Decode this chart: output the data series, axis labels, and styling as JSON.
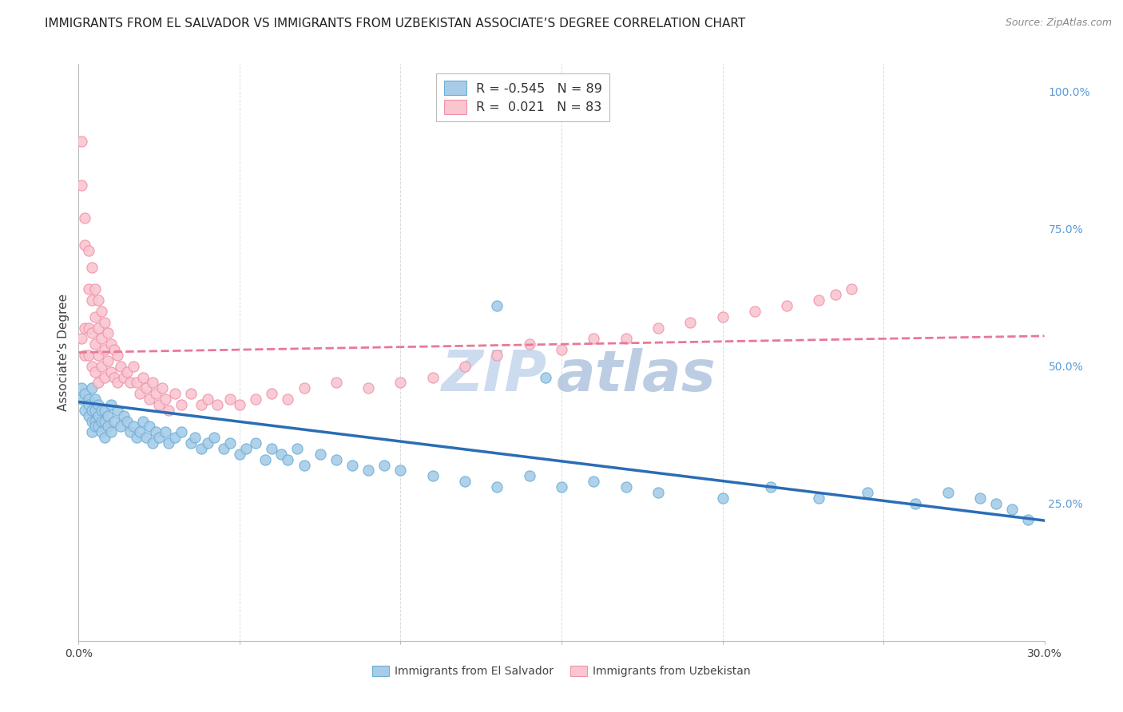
{
  "title": "IMMIGRANTS FROM EL SALVADOR VS IMMIGRANTS FROM UZBEKISTAN ASSOCIATE’S DEGREE CORRELATION CHART",
  "source": "Source: ZipAtlas.com",
  "ylabel": "Associate’s Degree",
  "xlim": [
    0.0,
    0.3
  ],
  "ylim": [
    0.0,
    1.05
  ],
  "xtick_vals": [
    0.0,
    0.05,
    0.1,
    0.15,
    0.2,
    0.25,
    0.3
  ],
  "xticklabels": [
    "0.0%",
    "",
    "",
    "",
    "",
    "",
    "30.0%"
  ],
  "yticks_right": [
    0.25,
    0.5,
    0.75,
    1.0
  ],
  "ytick_right_labels": [
    "25.0%",
    "50.0%",
    "75.0%",
    "100.0%"
  ],
  "blue_fill": "#a8cce8",
  "blue_edge": "#6aaed6",
  "pink_fill": "#f9c6d0",
  "pink_edge": "#f090a8",
  "trend_blue": "#2a6db5",
  "trend_pink": "#e87898",
  "R_blue": -0.545,
  "N_blue": 89,
  "R_pink": 0.021,
  "N_pink": 83,
  "legend_label_blue": "Immigrants from El Salvador",
  "legend_label_pink": "Immigrants from Uzbekistan",
  "blue_slope": -0.72,
  "blue_intercept": 0.435,
  "pink_slope": 0.1,
  "pink_intercept": 0.525,
  "background_color": "#ffffff",
  "grid_color": "#cccccc",
  "title_fontsize": 11,
  "axis_label_fontsize": 11,
  "tick_fontsize": 10,
  "source_fontsize": 9,
  "watermark_zip_color": "#c8d8ee",
  "watermark_atlas_color": "#a0b8d8",
  "watermark_fontsize": 52,
  "blue_x": [
    0.001,
    0.001,
    0.002,
    0.002,
    0.003,
    0.003,
    0.003,
    0.004,
    0.004,
    0.004,
    0.004,
    0.005,
    0.005,
    0.005,
    0.005,
    0.006,
    0.006,
    0.006,
    0.007,
    0.007,
    0.007,
    0.008,
    0.008,
    0.008,
    0.009,
    0.009,
    0.01,
    0.01,
    0.011,
    0.012,
    0.013,
    0.014,
    0.015,
    0.016,
    0.017,
    0.018,
    0.019,
    0.02,
    0.021,
    0.022,
    0.023,
    0.024,
    0.025,
    0.027,
    0.028,
    0.03,
    0.032,
    0.035,
    0.036,
    0.038,
    0.04,
    0.042,
    0.045,
    0.047,
    0.05,
    0.052,
    0.055,
    0.058,
    0.06,
    0.063,
    0.065,
    0.068,
    0.07,
    0.075,
    0.08,
    0.085,
    0.09,
    0.095,
    0.1,
    0.11,
    0.12,
    0.13,
    0.14,
    0.15,
    0.16,
    0.17,
    0.18,
    0.2,
    0.215,
    0.23,
    0.245,
    0.26,
    0.27,
    0.28,
    0.285,
    0.29,
    0.295,
    0.13,
    0.145
  ],
  "blue_y": [
    0.46,
    0.44,
    0.45,
    0.42,
    0.44,
    0.41,
    0.43,
    0.46,
    0.42,
    0.4,
    0.38,
    0.44,
    0.42,
    0.4,
    0.39,
    0.43,
    0.41,
    0.39,
    0.42,
    0.4,
    0.38,
    0.42,
    0.4,
    0.37,
    0.41,
    0.39,
    0.43,
    0.38,
    0.4,
    0.42,
    0.39,
    0.41,
    0.4,
    0.38,
    0.39,
    0.37,
    0.38,
    0.4,
    0.37,
    0.39,
    0.36,
    0.38,
    0.37,
    0.38,
    0.36,
    0.37,
    0.38,
    0.36,
    0.37,
    0.35,
    0.36,
    0.37,
    0.35,
    0.36,
    0.34,
    0.35,
    0.36,
    0.33,
    0.35,
    0.34,
    0.33,
    0.35,
    0.32,
    0.34,
    0.33,
    0.32,
    0.31,
    0.32,
    0.31,
    0.3,
    0.29,
    0.28,
    0.3,
    0.28,
    0.29,
    0.28,
    0.27,
    0.26,
    0.28,
    0.26,
    0.27,
    0.25,
    0.27,
    0.26,
    0.25,
    0.24,
    0.22,
    0.61,
    0.48
  ],
  "pink_x": [
    0.001,
    0.001,
    0.001,
    0.002,
    0.002,
    0.002,
    0.002,
    0.003,
    0.003,
    0.003,
    0.003,
    0.004,
    0.004,
    0.004,
    0.004,
    0.005,
    0.005,
    0.005,
    0.005,
    0.006,
    0.006,
    0.006,
    0.006,
    0.007,
    0.007,
    0.007,
    0.008,
    0.008,
    0.008,
    0.009,
    0.009,
    0.01,
    0.01,
    0.011,
    0.011,
    0.012,
    0.012,
    0.013,
    0.014,
    0.015,
    0.016,
    0.017,
    0.018,
    0.019,
    0.02,
    0.021,
    0.022,
    0.023,
    0.024,
    0.025,
    0.026,
    0.027,
    0.028,
    0.03,
    0.032,
    0.035,
    0.038,
    0.04,
    0.043,
    0.047,
    0.05,
    0.055,
    0.06,
    0.065,
    0.07,
    0.08,
    0.09,
    0.1,
    0.11,
    0.12,
    0.13,
    0.14,
    0.15,
    0.16,
    0.17,
    0.18,
    0.19,
    0.2,
    0.21,
    0.22,
    0.23,
    0.235,
    0.24
  ],
  "pink_y": [
    0.91,
    0.83,
    0.55,
    0.77,
    0.72,
    0.57,
    0.52,
    0.71,
    0.64,
    0.57,
    0.52,
    0.68,
    0.62,
    0.56,
    0.5,
    0.64,
    0.59,
    0.54,
    0.49,
    0.62,
    0.57,
    0.52,
    0.47,
    0.6,
    0.55,
    0.5,
    0.58,
    0.53,
    0.48,
    0.56,
    0.51,
    0.54,
    0.49,
    0.53,
    0.48,
    0.52,
    0.47,
    0.5,
    0.48,
    0.49,
    0.47,
    0.5,
    0.47,
    0.45,
    0.48,
    0.46,
    0.44,
    0.47,
    0.45,
    0.43,
    0.46,
    0.44,
    0.42,
    0.45,
    0.43,
    0.45,
    0.43,
    0.44,
    0.43,
    0.44,
    0.43,
    0.44,
    0.45,
    0.44,
    0.46,
    0.47,
    0.46,
    0.47,
    0.48,
    0.5,
    0.52,
    0.54,
    0.53,
    0.55,
    0.55,
    0.57,
    0.58,
    0.59,
    0.6,
    0.61,
    0.62,
    0.63,
    0.64
  ]
}
